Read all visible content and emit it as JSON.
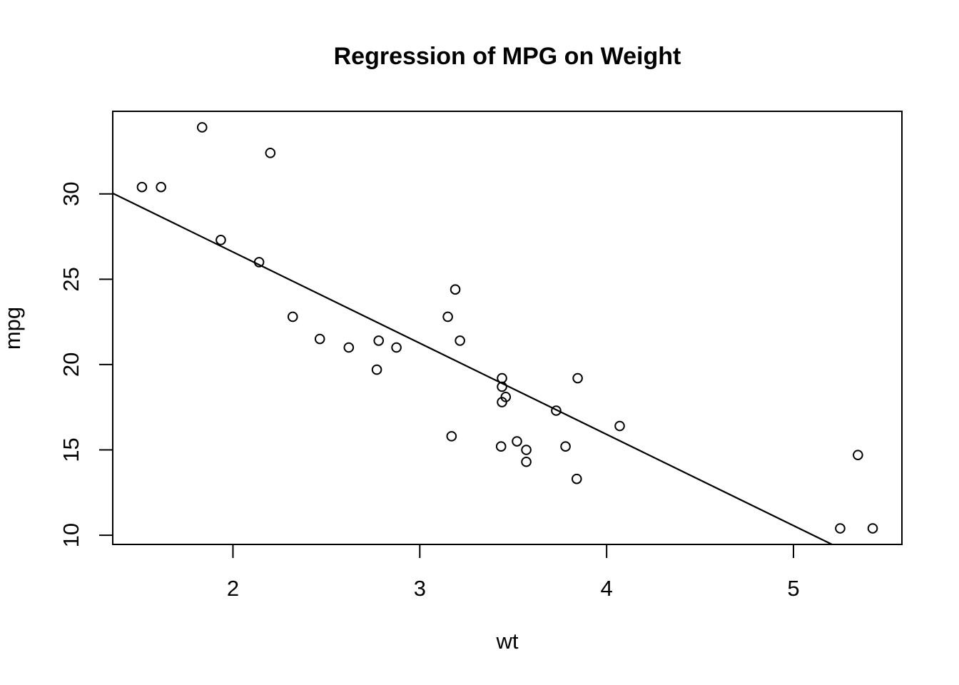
{
  "figure": {
    "kind": "r-base-scatter-plot",
    "background": "#ffffff"
  },
  "colors": {
    "foreground": "#000000",
    "background": "#ffffff"
  },
  "chart_data": {
    "type": "scatter",
    "title": "Regression of MPG on Weight",
    "xlabel": "wt",
    "ylabel": "mpg",
    "x_ticks": [
      2,
      3,
      4,
      5
    ],
    "y_ticks": [
      10,
      15,
      20,
      25,
      30
    ],
    "xlim": [
      1.3566,
      5.5804
    ],
    "ylim": [
      9.46,
      34.84
    ],
    "grid": false,
    "legend": null,
    "marker": "open-circle",
    "points": [
      {
        "wt": 2.62,
        "mpg": 21.0
      },
      {
        "wt": 2.875,
        "mpg": 21.0
      },
      {
        "wt": 2.32,
        "mpg": 22.8
      },
      {
        "wt": 3.215,
        "mpg": 21.4
      },
      {
        "wt": 3.44,
        "mpg": 18.7
      },
      {
        "wt": 3.46,
        "mpg": 18.1
      },
      {
        "wt": 3.57,
        "mpg": 14.3
      },
      {
        "wt": 3.19,
        "mpg": 24.4
      },
      {
        "wt": 3.15,
        "mpg": 22.8
      },
      {
        "wt": 3.44,
        "mpg": 19.2
      },
      {
        "wt": 3.44,
        "mpg": 17.8
      },
      {
        "wt": 4.07,
        "mpg": 16.4
      },
      {
        "wt": 3.73,
        "mpg": 17.3
      },
      {
        "wt": 3.78,
        "mpg": 15.2
      },
      {
        "wt": 5.25,
        "mpg": 10.4
      },
      {
        "wt": 5.424,
        "mpg": 10.4
      },
      {
        "wt": 5.345,
        "mpg": 14.7
      },
      {
        "wt": 2.2,
        "mpg": 32.4
      },
      {
        "wt": 1.615,
        "mpg": 30.4
      },
      {
        "wt": 1.835,
        "mpg": 33.9
      },
      {
        "wt": 2.465,
        "mpg": 21.5
      },
      {
        "wt": 3.52,
        "mpg": 15.5
      },
      {
        "wt": 3.435,
        "mpg": 15.2
      },
      {
        "wt": 3.84,
        "mpg": 13.3
      },
      {
        "wt": 3.845,
        "mpg": 19.2
      },
      {
        "wt": 1.935,
        "mpg": 27.3
      },
      {
        "wt": 2.14,
        "mpg": 26.0
      },
      {
        "wt": 1.513,
        "mpg": 30.4
      },
      {
        "wt": 3.17,
        "mpg": 15.8
      },
      {
        "wt": 2.77,
        "mpg": 19.7
      },
      {
        "wt": 3.57,
        "mpg": 15.0
      },
      {
        "wt": 2.78,
        "mpg": 21.4
      }
    ],
    "regression_line": {
      "intercept": 37.2851,
      "slope": -5.3445
    }
  }
}
